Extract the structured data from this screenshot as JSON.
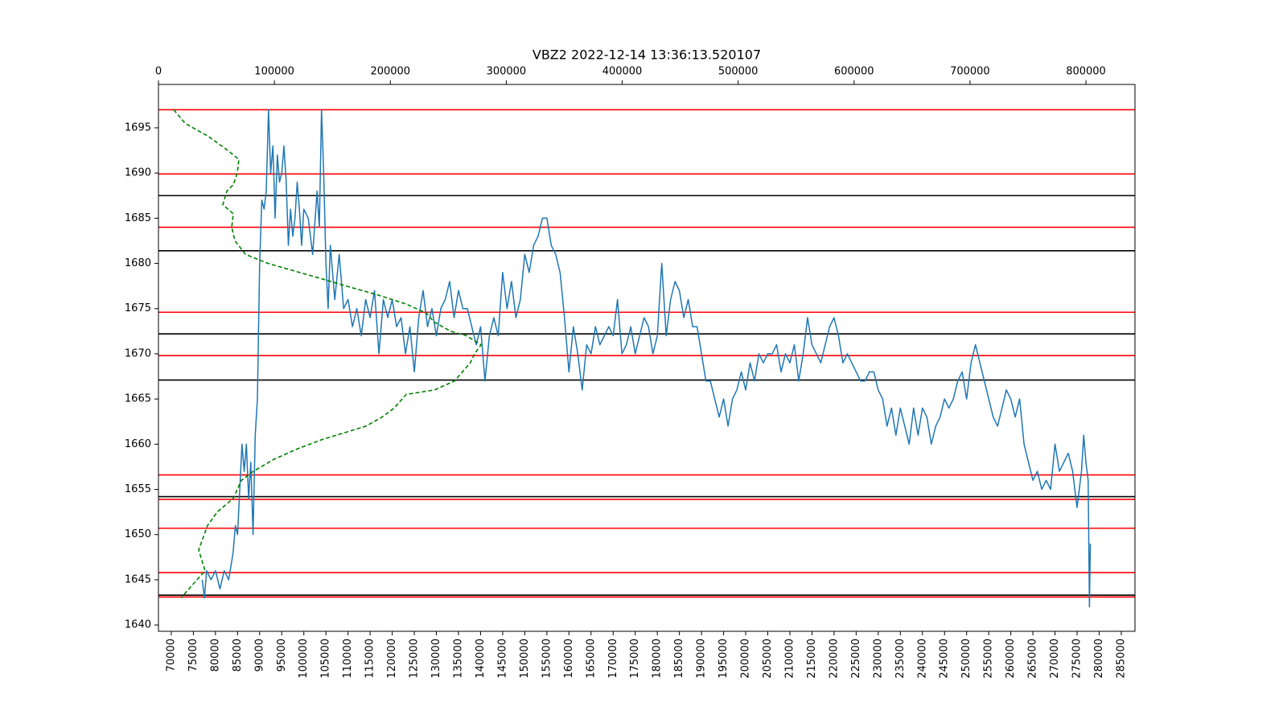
{
  "chart_data": {
    "type": "line",
    "title": "VBZ2 2022-12-14 13:36:13.520107",
    "xlim": [
      67100,
      288100
    ],
    "xticks": [
      70000,
      75000,
      80000,
      85000,
      90000,
      95000,
      100000,
      105000,
      110000,
      115000,
      120000,
      125000,
      130000,
      135000,
      140000,
      145000,
      150000,
      155000,
      160000,
      165000,
      170000,
      175000,
      180000,
      185000,
      190000,
      195000,
      200000,
      205000,
      210000,
      215000,
      220000,
      225000,
      230000,
      235000,
      240000,
      245000,
      250000,
      255000,
      260000,
      265000,
      270000,
      275000,
      280000,
      285000
    ],
    "x2lim": [
      0,
      842300
    ],
    "x2ticks": [
      0,
      100000,
      200000,
      300000,
      400000,
      500000,
      600000,
      700000,
      800000
    ],
    "ylim": [
      1639.3,
      1699.8
    ],
    "yticks": [
      1640,
      1645,
      1650,
      1655,
      1660,
      1665,
      1670,
      1675,
      1680,
      1685,
      1690,
      1695
    ],
    "hlines": [
      {
        "value": 1697.0,
        "color": "#ff0000"
      },
      {
        "value": 1689.9,
        "color": "#ff0000"
      },
      {
        "value": 1684.0,
        "color": "#ff0000"
      },
      {
        "value": 1674.6,
        "color": "#ff0000"
      },
      {
        "value": 1669.8,
        "color": "#ff0000"
      },
      {
        "value": 1656.6,
        "color": "#ff0000"
      },
      {
        "value": 1653.9,
        "color": "#ff0000"
      },
      {
        "value": 1650.7,
        "color": "#ff0000"
      },
      {
        "value": 1645.8,
        "color": "#ff0000"
      },
      {
        "value": 1643.1,
        "color": "#ff0000"
      },
      {
        "value": 1687.5,
        "color": "#000000"
      },
      {
        "value": 1681.4,
        "color": "#000000"
      },
      {
        "value": 1672.2,
        "color": "#000000"
      },
      {
        "value": 1667.1,
        "color": "#000000"
      },
      {
        "value": 1654.2,
        "color": "#000000"
      },
      {
        "value": 1643.3,
        "color": "#000000"
      }
    ],
    "series": [
      {
        "color": "#1f77b4",
        "axis": "x",
        "x": [
          77000,
          77500,
          78000,
          79000,
          80000,
          81000,
          82000,
          83000,
          84000,
          84500,
          85000,
          85500,
          86000,
          86500,
          87000,
          87500,
          88000,
          88500,
          89000,
          89500,
          90000,
          90500,
          91000,
          91500,
          92000,
          92500,
          93000,
          93500,
          94000,
          94500,
          95000,
          95500,
          96000,
          96500,
          97000,
          97500,
          98000,
          98500,
          99000,
          99500,
          100000,
          101000,
          102000,
          103000,
          103500,
          104000,
          104500,
          105000,
          105500,
          106000,
          107000,
          108000,
          109000,
          110000,
          111000,
          112000,
          113000,
          114000,
          115000,
          116000,
          117000,
          118000,
          119000,
          120000,
          121000,
          122000,
          123000,
          124000,
          125000,
          126000,
          127000,
          128000,
          129000,
          130000,
          131000,
          132000,
          133000,
          134000,
          135000,
          136000,
          137000,
          138000,
          139000,
          140000,
          141000,
          142000,
          143000,
          144000,
          145000,
          146000,
          147000,
          148000,
          149000,
          150000,
          151000,
          152000,
          153000,
          154000,
          155000,
          156000,
          157000,
          158000,
          159000,
          160000,
          161000,
          162000,
          163000,
          164000,
          165000,
          166000,
          167000,
          168000,
          169000,
          170000,
          171000,
          172000,
          173000,
          174000,
          175000,
          176000,
          177000,
          178000,
          179000,
          180000,
          181000,
          182000,
          183000,
          184000,
          185000,
          186000,
          187000,
          188000,
          189000,
          190000,
          191000,
          192000,
          193000,
          194000,
          195000,
          196000,
          197000,
          198000,
          199000,
          200000,
          201000,
          202000,
          203000,
          204000,
          205000,
          206000,
          207000,
          208000,
          209000,
          210000,
          211000,
          212000,
          213000,
          214000,
          215000,
          216000,
          217000,
          218000,
          219000,
          220000,
          221000,
          222000,
          223000,
          224000,
          225000,
          226000,
          227000,
          228000,
          229000,
          230000,
          231000,
          232000,
          233000,
          234000,
          235000,
          236000,
          237000,
          238000,
          239000,
          240000,
          241000,
          242000,
          243000,
          244000,
          245000,
          246000,
          247000,
          248000,
          249000,
          250000,
          251000,
          252000,
          253000,
          254000,
          255000,
          256000,
          257000,
          258000,
          259000,
          260000,
          261000,
          262000,
          263000,
          264000,
          265000,
          266000,
          267000,
          268000,
          269000,
          270000,
          271000,
          272000,
          273000,
          274000,
          275000,
          276000,
          276500,
          277000,
          277500,
          277800,
          278000
        ],
        "values": [
          1645,
          1643,
          1646,
          1645,
          1646,
          1644,
          1646,
          1645,
          1648,
          1651,
          1650,
          1655,
          1660,
          1657,
          1660,
          1654,
          1658,
          1650,
          1661,
          1665,
          1680,
          1687,
          1686,
          1688,
          1697,
          1690,
          1693,
          1685,
          1692,
          1689,
          1690,
          1693,
          1689,
          1682,
          1686,
          1683,
          1685,
          1689,
          1686,
          1682,
          1686,
          1685,
          1681,
          1688,
          1684,
          1697,
          1690,
          1680,
          1675,
          1682,
          1676,
          1681,
          1675,
          1676,
          1673,
          1675,
          1672,
          1676,
          1674,
          1677,
          1670,
          1676,
          1674,
          1676,
          1673,
          1674,
          1670,
          1673,
          1668,
          1674,
          1677,
          1673,
          1675,
          1672,
          1675,
          1676,
          1678,
          1674,
          1677,
          1675,
          1675,
          1673,
          1671,
          1673,
          1667,
          1672,
          1674,
          1672,
          1679,
          1675,
          1678,
          1674,
          1676,
          1681,
          1679,
          1682,
          1683,
          1685,
          1685,
          1682,
          1681,
          1679,
          1674,
          1668,
          1673,
          1670,
          1666,
          1671,
          1670,
          1673,
          1671,
          1672,
          1673,
          1672,
          1676,
          1670,
          1671,
          1673,
          1670,
          1672,
          1674,
          1673,
          1670,
          1672,
          1680,
          1672,
          1676,
          1678,
          1677,
          1674,
          1676,
          1673,
          1673,
          1670,
          1667,
          1667,
          1665,
          1663,
          1665,
          1662,
          1665,
          1666,
          1668,
          1666,
          1669,
          1667,
          1670,
          1669,
          1670,
          1670,
          1671,
          1668,
          1670,
          1669,
          1671,
          1667,
          1670,
          1674,
          1671,
          1670,
          1669,
          1671,
          1673,
          1674,
          1672,
          1669,
          1670,
          1669,
          1668,
          1667,
          1667,
          1668,
          1668,
          1666,
          1665,
          1662,
          1664,
          1661,
          1664,
          1662,
          1660,
          1664,
          1661,
          1664,
          1663,
          1660,
          1662,
          1663,
          1665,
          1664,
          1665,
          1667,
          1668,
          1665,
          1669,
          1671,
          1669,
          1667,
          1665,
          1663,
          1662,
          1664,
          1666,
          1665,
          1663,
          1665,
          1660,
          1658,
          1656,
          1657,
          1655,
          1656,
          1655,
          1660,
          1657,
          1658,
          1659,
          1657,
          1653,
          1657,
          1661,
          1658,
          1656,
          1642,
          1649
        ]
      },
      {
        "color": "#008000",
        "axis": "x2",
        "dashed": true,
        "x": [
          13200,
          22900,
          43700,
          59700,
          69400,
          68000,
          64500,
          59000,
          55500,
          64500,
          63200,
          66000,
          75000,
          94400,
          140900,
          161700,
          189500,
          213700,
          231100,
          238000,
          251900,
          265800,
          278300,
          272700,
          269000,
          262200,
          255400,
          238000,
          213700,
          203300,
          192900,
          179000,
          140900,
          120100,
          99200,
          81900,
          71500,
          64500,
          50700,
          42300,
          34700,
          40200,
          19400
        ],
        "values": [
          1697,
          1695.5,
          1694,
          1692.5,
          1691.5,
          1690,
          1688.7,
          1688,
          1686.5,
          1685.5,
          1684,
          1682.5,
          1681,
          1680,
          1678.3,
          1677.5,
          1676.5,
          1675.5,
          1674.5,
          1673.5,
          1672.5,
          1672,
          1671,
          1670,
          1669,
          1668,
          1667,
          1666,
          1665.5,
          1664,
          1663,
          1662,
          1660.5,
          1659.5,
          1658.3,
          1657,
          1656,
          1654,
          1652.5,
          1651,
          1648.3,
          1646,
          1643
        ]
      }
    ]
  }
}
